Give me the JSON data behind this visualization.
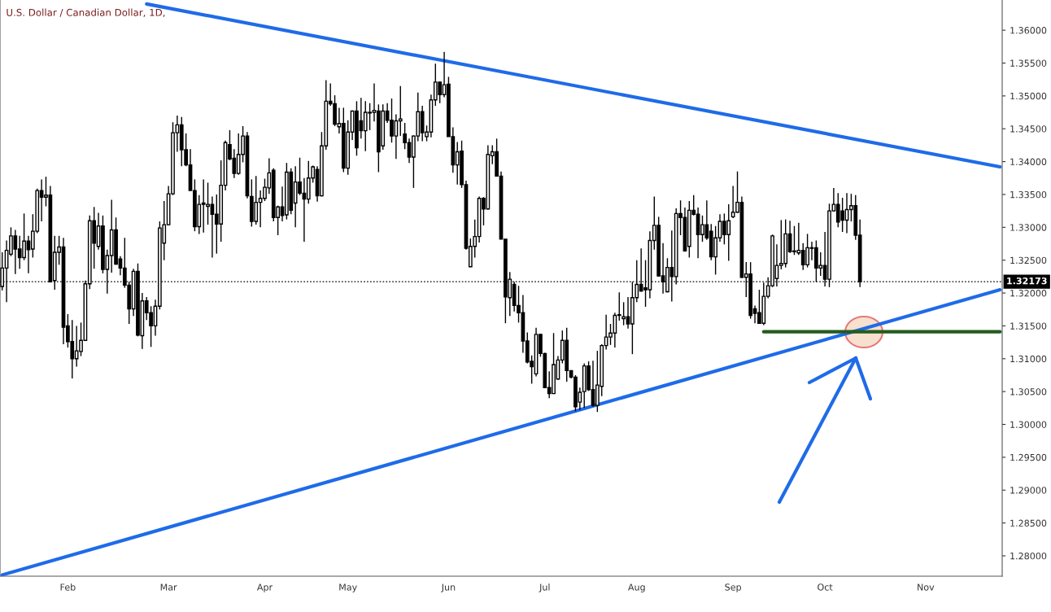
{
  "chart_data": {
    "type": "candlestick",
    "title": "U.S. Dollar / Canadian Dollar, 1D,",
    "categories": [
      null,
      null,
      null,
      null,
      null,
      null,
      null,
      null,
      null,
      null,
      null,
      null,
      null,
      null,
      null,
      "Feb",
      null,
      null,
      null,
      null,
      null,
      null,
      null,
      null,
      null,
      null,
      null,
      null,
      null,
      null,
      null,
      null,
      null,
      null,
      null,
      null,
      null,
      null,
      "Mar",
      null,
      null,
      null,
      null,
      null,
      null,
      null,
      null,
      null,
      null,
      null,
      null,
      null,
      null,
      null,
      null,
      null,
      null,
      null,
      null,
      null,
      "Apr",
      null,
      null,
      null,
      null,
      null,
      null,
      null,
      null,
      null,
      null,
      null,
      null,
      null,
      null,
      null,
      null,
      null,
      null,
      "May",
      null,
      null,
      null,
      null,
      null,
      null,
      null,
      null,
      null,
      null,
      null,
      null,
      null,
      null,
      null,
      null,
      null,
      null,
      null,
      null,
      null,
      null,
      "Jun",
      null,
      null,
      null,
      null,
      null,
      null,
      null,
      null,
      null,
      null,
      null,
      null,
      null,
      null,
      null,
      null,
      null,
      null,
      null,
      null,
      null,
      "Jul",
      null,
      null,
      null,
      null,
      null,
      null,
      null,
      null,
      null,
      null,
      null,
      null,
      null,
      null,
      null,
      null,
      null,
      null,
      null,
      null,
      "Aug",
      null,
      null,
      null,
      null,
      null,
      null,
      null,
      null,
      null,
      null,
      null,
      null,
      null,
      null,
      null,
      null,
      null,
      null,
      null,
      null,
      null,
      "Sep",
      null,
      null,
      null,
      null,
      null,
      null,
      null,
      null,
      null,
      null,
      null,
      null,
      null,
      null,
      null,
      null,
      null,
      null,
      null,
      null,
      "Oct",
      null,
      null,
      null,
      null,
      null,
      null,
      null,
      null,
      null,
      null,
      null,
      null,
      null,
      null,
      null,
      null,
      null,
      null,
      null,
      null,
      null,
      null,
      "Nov",
      null,
      null,
      null,
      null,
      null,
      null,
      null,
      null,
      null,
      null,
      null,
      null,
      null,
      null,
      null,
      null,
      null
    ],
    "ohlc": [
      [
        1.321,
        1.3262,
        1.3204,
        1.3238
      ],
      [
        1.3238,
        1.328,
        1.3186,
        1.3265
      ],
      [
        1.3259,
        1.33,
        1.3256,
        1.3287
      ],
      [
        1.3287,
        1.3296,
        1.3229,
        1.3267
      ],
      [
        1.3267,
        1.3287,
        1.3237,
        1.3254
      ],
      [
        1.3254,
        1.3321,
        1.325,
        1.3279
      ],
      [
        1.3279,
        1.3287,
        1.323,
        1.3266
      ],
      [
        1.3267,
        1.332,
        1.3254,
        1.3294
      ],
      [
        1.3294,
        1.3359,
        1.3291,
        1.3356
      ],
      [
        1.3356,
        1.3373,
        1.3309,
        1.3346
      ],
      [
        1.3346,
        1.3377,
        1.3332,
        1.3349
      ],
      [
        1.3349,
        1.3363,
        1.3217,
        1.3217
      ],
      [
        1.3219,
        1.3287,
        1.3205,
        1.3262
      ],
      [
        1.3262,
        1.3287,
        1.3243,
        1.327
      ],
      [
        1.327,
        1.3284,
        1.3122,
        1.3148
      ],
      [
        1.315,
        1.3168,
        1.3117,
        1.3126
      ],
      [
        1.3126,
        1.3159,
        1.307,
        1.31
      ],
      [
        1.31,
        1.315,
        1.3088,
        1.3112
      ],
      [
        1.3111,
        1.3155,
        1.3104,
        1.3128
      ],
      [
        1.3128,
        1.3219,
        1.3127,
        1.3214
      ],
      [
        1.3214,
        1.3318,
        1.3206,
        1.331
      ],
      [
        1.331,
        1.3331,
        1.3237,
        1.3276
      ],
      [
        1.3271,
        1.3322,
        1.3266,
        1.3302
      ],
      [
        1.3302,
        1.3318,
        1.323,
        1.3236
      ],
      [
        1.3236,
        1.3266,
        1.3199,
        1.3257
      ],
      [
        1.3257,
        1.3342,
        1.3231,
        1.3296
      ],
      [
        1.3296,
        1.3315,
        1.3243,
        1.3244
      ],
      [
        1.3252,
        1.3256,
        1.3227,
        1.3238
      ],
      [
        1.3238,
        1.3284,
        1.3208,
        1.3212
      ],
      [
        1.3212,
        1.3217,
        1.3153,
        1.3176
      ],
      [
        1.3176,
        1.3237,
        1.3165,
        1.3233
      ],
      [
        1.3233,
        1.3245,
        1.3134,
        1.3136
      ],
      [
        1.3135,
        1.32,
        1.3115,
        1.3188
      ],
      [
        1.3188,
        1.3194,
        1.3159,
        1.317
      ],
      [
        1.317,
        1.318,
        1.3118,
        1.315
      ],
      [
        1.315,
        1.319,
        1.3135,
        1.318
      ],
      [
        1.318,
        1.3309,
        1.3175,
        1.3299
      ],
      [
        1.3276,
        1.334,
        1.325,
        1.3304
      ],
      [
        1.3304,
        1.3363,
        1.3303,
        1.3351
      ],
      [
        1.3351,
        1.346,
        1.3349,
        1.3444
      ],
      [
        1.3444,
        1.347,
        1.3415,
        1.3456
      ],
      [
        1.3456,
        1.3468,
        1.3393,
        1.3418
      ],
      [
        1.3418,
        1.3443,
        1.3393,
        1.3395
      ],
      [
        1.3395,
        1.3419,
        1.3356,
        1.3356
      ],
      [
        1.3356,
        1.3373,
        1.3294,
        1.3301
      ],
      [
        1.3301,
        1.3349,
        1.329,
        1.3335
      ],
      [
        1.3337,
        1.3373,
        1.3292,
        1.3335
      ],
      [
        1.3332,
        1.3368,
        1.3304,
        1.3335
      ],
      [
        1.3335,
        1.3347,
        1.3254,
        1.332
      ],
      [
        1.332,
        1.335,
        1.326,
        1.3305
      ],
      [
        1.3305,
        1.3402,
        1.3278,
        1.3364
      ],
      [
        1.3364,
        1.3432,
        1.3356,
        1.3429
      ],
      [
        1.3426,
        1.3448,
        1.3402,
        1.3404
      ],
      [
        1.3405,
        1.3419,
        1.3375,
        1.3382
      ],
      [
        1.3382,
        1.3443,
        1.338,
        1.3411
      ],
      [
        1.3411,
        1.3454,
        1.3399,
        1.3439
      ],
      [
        1.3439,
        1.3445,
        1.3344,
        1.3348
      ],
      [
        1.3347,
        1.3373,
        1.3301,
        1.3309
      ],
      [
        1.3309,
        1.3378,
        1.3304,
        1.3338
      ],
      [
        1.3338,
        1.3356,
        1.33,
        1.3344
      ],
      [
        1.3344,
        1.3374,
        1.334,
        1.3361
      ],
      [
        1.336,
        1.3405,
        1.3351,
        1.3383
      ],
      [
        1.3387,
        1.339,
        1.3309,
        1.3315
      ],
      [
        1.3315,
        1.3333,
        1.3288,
        1.3331
      ],
      [
        1.3331,
        1.3362,
        1.3309,
        1.3318
      ],
      [
        1.3319,
        1.3398,
        1.3312,
        1.3384
      ],
      [
        1.3384,
        1.339,
        1.332,
        1.3326
      ],
      [
        1.3337,
        1.3393,
        1.33,
        1.3369
      ],
      [
        1.3369,
        1.3406,
        1.3349,
        1.3352
      ],
      [
        1.3352,
        1.3375,
        1.3278,
        1.3343
      ],
      [
        1.3343,
        1.3401,
        1.3336,
        1.3375
      ],
      [
        1.3375,
        1.3394,
        1.3368,
        1.3392
      ],
      [
        1.3388,
        1.3393,
        1.3339,
        1.3348
      ],
      [
        1.3348,
        1.3445,
        1.3347,
        1.3424
      ],
      [
        1.3424,
        1.3524,
        1.3418,
        1.3492
      ],
      [
        1.3492,
        1.3519,
        1.3485,
        1.3488
      ],
      [
        1.3488,
        1.3501,
        1.3454,
        1.3457
      ],
      [
        1.3453,
        1.3482,
        1.3443,
        1.3458
      ],
      [
        1.3458,
        1.3482,
        1.3384,
        1.339
      ],
      [
        1.339,
        1.3463,
        1.338,
        1.3445
      ],
      [
        1.3445,
        1.3478,
        1.3433,
        1.3477
      ],
      [
        1.3477,
        1.3492,
        1.3409,
        1.3421
      ],
      [
        1.3462,
        1.3497,
        1.3435,
        1.3447
      ],
      [
        1.3447,
        1.3492,
        1.3416,
        1.3475
      ],
      [
        1.3474,
        1.3489,
        1.3448,
        1.3475
      ],
      [
        1.3475,
        1.3519,
        1.3461,
        1.3478
      ],
      [
        1.3477,
        1.3487,
        1.3384,
        1.3415
      ],
      [
        1.3424,
        1.3487,
        1.3418,
        1.3477
      ],
      [
        1.3477,
        1.3489,
        1.3459,
        1.3463
      ],
      [
        1.3463,
        1.3496,
        1.3429,
        1.3439
      ],
      [
        1.3439,
        1.3472,
        1.3404,
        1.3462
      ],
      [
        1.3462,
        1.3515,
        1.3439,
        1.3465
      ],
      [
        1.3442,
        1.3459,
        1.3419,
        1.3429
      ],
      [
        1.3429,
        1.3435,
        1.3398,
        1.3407
      ],
      [
        1.3407,
        1.344,
        1.336,
        1.3439
      ],
      [
        1.3439,
        1.3505,
        1.3431,
        1.3476
      ],
      [
        1.3476,
        1.3485,
        1.3431,
        1.3444
      ],
      [
        1.3438,
        1.3455,
        1.3431,
        1.3445
      ],
      [
        1.3445,
        1.3502,
        1.3437,
        1.3494
      ],
      [
        1.3494,
        1.3549,
        1.3485,
        1.3521
      ],
      [
        1.3521,
        1.3522,
        1.3489,
        1.3502
      ],
      [
        1.3502,
        1.3567,
        1.3498,
        1.3517
      ],
      [
        1.3518,
        1.3529,
        1.3438,
        1.3438
      ],
      [
        1.3438,
        1.3452,
        1.3383,
        1.3395
      ],
      [
        1.3395,
        1.343,
        1.3365,
        1.3415
      ],
      [
        1.3416,
        1.3432,
        1.336,
        1.3365
      ],
      [
        1.3365,
        1.3371,
        1.3266,
        1.3268
      ],
      [
        1.324,
        1.3283,
        1.324,
        1.3271
      ],
      [
        1.3271,
        1.3312,
        1.3254,
        1.3286
      ],
      [
        1.3286,
        1.3347,
        1.3277,
        1.3344
      ],
      [
        1.3344,
        1.3346,
        1.3303,
        1.3328
      ],
      [
        1.3328,
        1.3425,
        1.3327,
        1.3411
      ],
      [
        1.3409,
        1.3425,
        1.3396,
        1.3415
      ],
      [
        1.3415,
        1.3435,
        1.3378,
        1.3378
      ],
      [
        1.3378,
        1.3385,
        1.3282,
        1.3282
      ],
      [
        1.3282,
        1.3282,
        1.3154,
        1.3194
      ],
      [
        1.3193,
        1.3232,
        1.3165,
        1.3221
      ],
      [
        1.3213,
        1.3217,
        1.3172,
        1.3181
      ],
      [
        1.3181,
        1.3211,
        1.3155,
        1.317
      ],
      [
        1.317,
        1.3197,
        1.3109,
        1.3127
      ],
      [
        1.3127,
        1.314,
        1.3093,
        1.3095
      ],
      [
        1.3096,
        1.3105,
        1.3062,
        1.3088
      ],
      [
        1.3077,
        1.3147,
        1.3073,
        1.3137
      ],
      [
        1.3137,
        1.3138,
        1.3103,
        1.3108
      ],
      [
        1.3108,
        1.3109,
        1.3056,
        1.3056
      ],
      [
        1.3056,
        1.3081,
        1.304,
        1.3047
      ],
      [
        1.3047,
        1.3139,
        1.3047,
        1.3091
      ],
      [
        1.3069,
        1.3104,
        1.3068,
        1.3098
      ],
      [
        1.3098,
        1.3143,
        1.3093,
        1.3128
      ],
      [
        1.3128,
        1.3147,
        1.3065,
        1.3082
      ],
      [
        1.3082,
        1.3082,
        1.307,
        1.3072
      ],
      [
        1.3072,
        1.3075,
        1.302,
        1.3027
      ],
      [
        1.3034,
        1.3056,
        1.3022,
        1.3049
      ],
      [
        1.305,
        1.3093,
        1.3025,
        1.3089
      ],
      [
        1.3089,
        1.3096,
        1.3051,
        1.3053
      ],
      [
        1.3053,
        1.3097,
        1.3027,
        1.3029
      ],
      [
        1.3029,
        1.3112,
        1.3019,
        1.306
      ],
      [
        1.3058,
        1.3122,
        1.3043,
        1.312
      ],
      [
        1.312,
        1.3167,
        1.3114,
        1.3133
      ],
      [
        1.3133,
        1.3153,
        1.3121,
        1.3139
      ],
      [
        1.3139,
        1.317,
        1.3117,
        1.3166
      ],
      [
        1.3167,
        1.3201,
        1.3158,
        1.3166
      ],
      [
        1.3161,
        1.3186,
        1.3151,
        1.3164
      ],
      [
        1.3164,
        1.3194,
        1.3146,
        1.3153
      ],
      [
        1.3153,
        1.3217,
        1.3107,
        1.3193
      ],
      [
        1.3193,
        1.325,
        1.3186,
        1.3213
      ],
      [
        1.3213,
        1.3268,
        1.3202,
        1.3203
      ],
      [
        1.3208,
        1.325,
        1.3179,
        1.3205
      ],
      [
        1.3205,
        1.3294,
        1.3192,
        1.328
      ],
      [
        1.328,
        1.3347,
        1.3266,
        1.3303
      ],
      [
        1.3303,
        1.3316,
        1.3225,
        1.3226
      ],
      [
        1.3226,
        1.3276,
        1.3199,
        1.3217
      ],
      [
        1.3202,
        1.3253,
        1.3201,
        1.3239
      ],
      [
        1.3239,
        1.3295,
        1.3187,
        1.3225
      ],
      [
        1.3225,
        1.3329,
        1.3213,
        1.3321
      ],
      [
        1.3321,
        1.3341,
        1.3288,
        1.3315
      ],
      [
        1.3315,
        1.333,
        1.3263,
        1.3264
      ],
      [
        1.3271,
        1.334,
        1.3254,
        1.3326
      ],
      [
        1.3326,
        1.3349,
        1.3318,
        1.332
      ],
      [
        1.332,
        1.333,
        1.3253,
        1.3289
      ],
      [
        1.3289,
        1.3318,
        1.3278,
        1.3304
      ],
      [
        1.3304,
        1.3341,
        1.3281,
        1.3284
      ],
      [
        1.3294,
        1.3305,
        1.325,
        1.3255
      ],
      [
        1.3255,
        1.3302,
        1.3228,
        1.3284
      ],
      [
        1.3284,
        1.332,
        1.3278,
        1.3309
      ],
      [
        1.3309,
        1.3321,
        1.3274,
        1.3289
      ],
      [
        1.3289,
        1.3335,
        1.3249,
        1.331
      ],
      [
        1.3316,
        1.3363,
        1.3314,
        1.3323
      ],
      [
        1.3323,
        1.3385,
        1.3322,
        1.3338
      ],
      [
        1.3338,
        1.3347,
        1.3223,
        1.3224
      ],
      [
        1.3224,
        1.3247,
        1.3194,
        1.3229
      ],
      [
        1.3229,
        1.3247,
        1.3161,
        1.3166
      ],
      [
        1.3176,
        1.3181,
        1.3154,
        1.3169
      ],
      [
        1.317,
        1.3205,
        1.3153,
        1.3154
      ],
      [
        1.3154,
        1.3216,
        1.3151,
        1.3195
      ],
      [
        1.3195,
        1.3224,
        1.3192,
        1.3211
      ],
      [
        1.3211,
        1.3289,
        1.3209,
        1.3287
      ],
      [
        1.3222,
        1.3274,
        1.321,
        1.3242
      ],
      [
        1.3242,
        1.3311,
        1.3236,
        1.3245
      ],
      [
        1.3245,
        1.3312,
        1.3239,
        1.329
      ],
      [
        1.329,
        1.331,
        1.3261,
        1.3263
      ],
      [
        1.3264,
        1.3302,
        1.3258,
        1.3263
      ],
      [
        1.3261,
        1.3307,
        1.3258,
        1.3265
      ],
      [
        1.3265,
        1.3276,
        1.3235,
        1.3243
      ],
      [
        1.3243,
        1.329,
        1.3239,
        1.3269
      ],
      [
        1.3268,
        1.3278,
        1.325,
        1.3269
      ],
      [
        1.3269,
        1.328,
        1.3217,
        1.3238
      ],
      [
        1.3238,
        1.3262,
        1.3226,
        1.3242
      ],
      [
        1.3242,
        1.3293,
        1.321,
        1.3221
      ],
      [
        1.3221,
        1.3336,
        1.3209,
        1.3325
      ],
      [
        1.3325,
        1.336,
        1.3324,
        1.3335
      ],
      [
        1.3335,
        1.3352,
        1.33,
        1.3308
      ],
      [
        1.3325,
        1.3345,
        1.3293,
        1.3311
      ],
      [
        1.3311,
        1.3352,
        1.3291,
        1.3327
      ],
      [
        1.3327,
        1.3351,
        1.3309,
        1.3333
      ],
      [
        1.3333,
        1.3349,
        1.3281,
        1.3288
      ],
      [
        1.3288,
        1.3312,
        1.3209,
        1.32173
      ],
      null,
      null,
      null,
      null,
      null,
      null,
      null,
      null,
      null,
      null,
      null,
      null,
      null,
      null,
      null,
      null,
      null,
      null,
      null,
      null,
      null,
      null,
      null,
      null,
      null,
      null,
      null,
      null,
      null,
      null,
      null,
      null
    ],
    "series": [
      {
        "type": "line",
        "color": "#1f6be8",
        "values": [
          null,
          null,
          null,
          null,
          null,
          null,
          null,
          null,
          null,
          null,
          null,
          null,
          null,
          null,
          null,
          null,
          null,
          null,
          null,
          null,
          null,
          null,
          null,
          null,
          null,
          null,
          null,
          null,
          null,
          null,
          null,
          null,
          null,
          1.364,
          null,
          null,
          null,
          null,
          null,
          null,
          null,
          null,
          null,
          null,
          null,
          null,
          null,
          null,
          null,
          null,
          null,
          null,
          null,
          null,
          null,
          null,
          null,
          null,
          null,
          null,
          null,
          null,
          null,
          null,
          null,
          null,
          null,
          null,
          null,
          null,
          null,
          null,
          null,
          null,
          null,
          null,
          null,
          null,
          null,
          null,
          null,
          null,
          null,
          null,
          null,
          null,
          null,
          null,
          null,
          null,
          null,
          null,
          null,
          null,
          null,
          null,
          null,
          null,
          null,
          null,
          null,
          null,
          null,
          null,
          null,
          null,
          null,
          null,
          null,
          null,
          null,
          null,
          null,
          null,
          null,
          null,
          null,
          null,
          null,
          null,
          null,
          null,
          null,
          null,
          null,
          null,
          null,
          null,
          null,
          null,
          null,
          null,
          null,
          null,
          null,
          null,
          null,
          null,
          null,
          null,
          null,
          null,
          null,
          null,
          null,
          null,
          null,
          null,
          null,
          null,
          null,
          null,
          null,
          null,
          null,
          null,
          null,
          null,
          null,
          null,
          null,
          null,
          null,
          null,
          null,
          null,
          null,
          null,
          null,
          null,
          null,
          null,
          null,
          null,
          null,
          null,
          null,
          null,
          null,
          null,
          null,
          null,
          null,
          null,
          null,
          null,
          null,
          null,
          null,
          null,
          null,
          null,
          null,
          null,
          null,
          null,
          null,
          null,
          null,
          null,
          null,
          null,
          null,
          null,
          null,
          null,
          null,
          null,
          null,
          null,
          null,
          null,
          null,
          null,
          null,
          null,
          null,
          null,
          null,
          null,
          null,
          null,
          null,
          null,
          null,
          null,
          null,
          null,
          1.3392
        ]
      },
      {
        "type": "line",
        "color": "#1f6be8",
        "values": [
          1.2771,
          null,
          null,
          null,
          null,
          null,
          null,
          null,
          null,
          null,
          null,
          null,
          null,
          null,
          null,
          null,
          null,
          null,
          null,
          null,
          null,
          null,
          null,
          null,
          null,
          null,
          null,
          null,
          null,
          null,
          null,
          null,
          null,
          null,
          null,
          null,
          null,
          null,
          null,
          null,
          null,
          null,
          null,
          null,
          null,
          null,
          null,
          null,
          null,
          null,
          null,
          null,
          null,
          null,
          null,
          null,
          null,
          null,
          null,
          null,
          null,
          null,
          null,
          null,
          null,
          null,
          null,
          null,
          null,
          null,
          null,
          null,
          null,
          null,
          null,
          null,
          null,
          null,
          null,
          null,
          null,
          null,
          null,
          null,
          null,
          null,
          null,
          null,
          null,
          null,
          null,
          null,
          null,
          null,
          null,
          null,
          null,
          null,
          null,
          null,
          null,
          null,
          null,
          null,
          null,
          null,
          null,
          null,
          null,
          null,
          null,
          null,
          null,
          null,
          null,
          null,
          null,
          null,
          null,
          null,
          null,
          null,
          null,
          null,
          null,
          null,
          null,
          null,
          null,
          null,
          null,
          null,
          null,
          null,
          null,
          null,
          null,
          null,
          null,
          null,
          null,
          null,
          null,
          null,
          null,
          null,
          null,
          null,
          null,
          null,
          null,
          null,
          null,
          null,
          null,
          null,
          null,
          null,
          null,
          null,
          null,
          null,
          null,
          null,
          null,
          null,
          null,
          null,
          null,
          null,
          null,
          null,
          null,
          null,
          null,
          null,
          null,
          null,
          null,
          null,
          null,
          null,
          null,
          null,
          null,
          null,
          null,
          null,
          null,
          null,
          null,
          null,
          null,
          null,
          null,
          null,
          null,
          null,
          null,
          null,
          null,
          null,
          null,
          null,
          null,
          null,
          null,
          null,
          null,
          null,
          null,
          null,
          null,
          null,
          null,
          null,
          null,
          null,
          null,
          null,
          null,
          null,
          null,
          null,
          null,
          null,
          null,
          null,
          1.3205
        ]
      },
      {
        "type": "line",
        "color": "#245c1f",
        "values": [
          null,
          null,
          null,
          null,
          null,
          null,
          null,
          null,
          null,
          null,
          null,
          null,
          null,
          null,
          null,
          null,
          null,
          null,
          null,
          null,
          null,
          null,
          null,
          null,
          null,
          null,
          null,
          null,
          null,
          null,
          null,
          null,
          null,
          null,
          null,
          null,
          null,
          null,
          null,
          null,
          null,
          null,
          null,
          null,
          null,
          null,
          null,
          null,
          null,
          null,
          null,
          null,
          null,
          null,
          null,
          null,
          null,
          null,
          null,
          null,
          null,
          null,
          null,
          null,
          null,
          null,
          null,
          null,
          null,
          null,
          null,
          null,
          null,
          null,
          null,
          null,
          null,
          null,
          null,
          null,
          null,
          null,
          null,
          null,
          null,
          null,
          null,
          null,
          null,
          null,
          null,
          null,
          null,
          null,
          null,
          null,
          null,
          null,
          null,
          null,
          null,
          null,
          null,
          null,
          null,
          null,
          null,
          null,
          null,
          null,
          null,
          null,
          null,
          null,
          null,
          null,
          null,
          null,
          null,
          null,
          null,
          null,
          null,
          null,
          null,
          null,
          null,
          null,
          null,
          null,
          null,
          null,
          null,
          null,
          null,
          null,
          null,
          null,
          null,
          null,
          null,
          null,
          null,
          null,
          null,
          null,
          null,
          null,
          null,
          null,
          null,
          null,
          null,
          null,
          null,
          null,
          null,
          null,
          null,
          null,
          null,
          null,
          null,
          null,
          null,
          null,
          null,
          null,
          null,
          null,
          null,
          null,
          null,
          null,
          1.3141,
          null,
          null,
          null,
          null,
          null,
          null,
          null,
          null,
          null,
          null,
          null,
          null,
          null,
          null,
          null,
          null,
          null,
          null,
          null,
          null,
          null,
          null,
          null,
          null,
          null,
          null,
          null,
          null,
          null,
          null,
          null,
          null,
          null,
          null,
          null,
          null,
          null,
          null,
          null,
          null,
          null,
          null,
          null,
          null,
          null,
          null,
          null,
          null,
          null,
          null,
          null,
          null,
          null,
          1.3141
        ]
      }
    ],
    "ref_lines": [
      {
        "axis": "y",
        "value": 1.32173,
        "label": "1.32173",
        "color": "#000000",
        "line_style": "dotted"
      }
    ],
    "ylim": [
      1.2769,
      1.3646
    ],
    "yticks": [
      {
        "value": 1.28,
        "label": "1.28000"
      },
      {
        "value": 1.285,
        "label": "1.28500"
      },
      {
        "value": 1.29,
        "label": "1.29000"
      },
      {
        "value": 1.295,
        "label": "1.29500"
      },
      {
        "value": 1.3,
        "label": "1.30000"
      },
      {
        "value": 1.305,
        "label": "1.30500"
      },
      {
        "value": 1.31,
        "label": "1.31000"
      },
      {
        "value": 1.315,
        "label": "1.31500"
      },
      {
        "value": 1.32,
        "label": "1.32000"
      },
      {
        "value": 1.325,
        "label": "1.32500"
      },
      {
        "value": 1.33,
        "label": "1.33000"
      },
      {
        "value": 1.335,
        "label": "1.33500"
      },
      {
        "value": 1.34,
        "label": "1.34000"
      },
      {
        "value": 1.345,
        "label": "1.34500"
      },
      {
        "value": 1.35,
        "label": "1.35000"
      },
      {
        "value": 1.355,
        "label": "1.35500"
      },
      {
        "value": 1.36,
        "label": "1.36000"
      }
    ],
    "grid": false
  }
}
